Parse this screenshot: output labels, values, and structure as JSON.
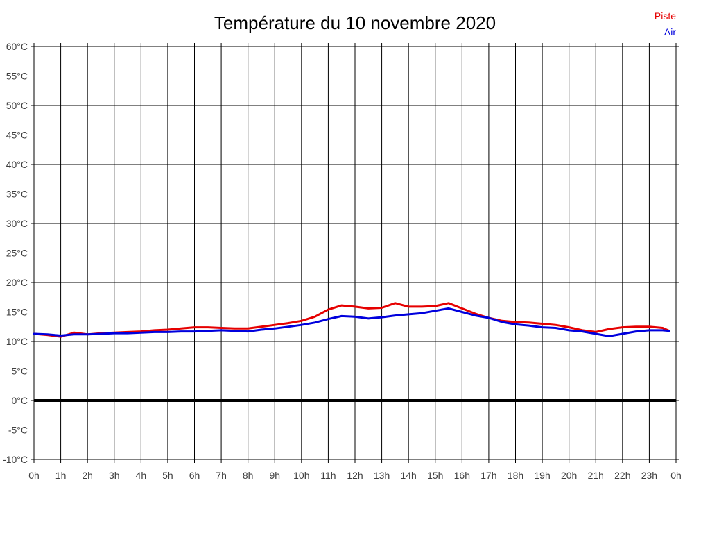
{
  "header": {
    "title": "Température du 10 novembre 2020"
  },
  "legend": {
    "items": [
      {
        "label": "Piste",
        "color": "#e60000"
      },
      {
        "label": "Air",
        "color": "#0000dd"
      }
    ]
  },
  "chart_data": {
    "type": "line",
    "title": "Température du 10 novembre 2020",
    "xlabel": "",
    "ylabel": "",
    "xlim": [
      0,
      24
    ],
    "ylim": [
      -10,
      60
    ],
    "y_tick_step": 5,
    "grid": true,
    "legend_position": "top-right",
    "colors": {
      "grid": "#000000",
      "axis": "#000000",
      "zero_line": "#000000",
      "tick_label": "#3f3f3f",
      "background": "#ffffff"
    },
    "zero_line_value": 0,
    "x_tick_labels": [
      "0h",
      "1h",
      "2h",
      "3h",
      "4h",
      "5h",
      "6h",
      "7h",
      "8h",
      "9h",
      "10h",
      "11h",
      "12h",
      "13h",
      "14h",
      "15h",
      "16h",
      "17h",
      "18h",
      "19h",
      "20h",
      "21h",
      "22h",
      "23h",
      "0h"
    ],
    "y_tick_labels": [
      "60°C",
      "55°C",
      "50°C",
      "45°C",
      "40°C",
      "35°C",
      "30°C",
      "25°C",
      "20°C",
      "15°C",
      "10°C",
      "5°C",
      "0°C",
      "-5°C",
      "-10°C"
    ],
    "x": [
      0,
      0.5,
      1,
      1.5,
      2,
      2.5,
      3,
      3.5,
      4,
      4.5,
      5,
      5.5,
      6,
      6.5,
      7,
      7.5,
      8,
      8.5,
      9,
      9.5,
      10,
      10.5,
      11,
      11.5,
      12,
      12.5,
      13,
      13.5,
      14,
      14.5,
      15,
      15.5,
      16,
      16.5,
      17,
      17.5,
      18,
      18.5,
      19,
      19.5,
      20,
      20.5,
      21,
      21.5,
      22,
      22.5,
      23,
      23.5,
      23.75
    ],
    "series": [
      {
        "name": "Piste",
        "color": "#e60000",
        "width": 3,
        "values": [
          11.3,
          11.1,
          10.8,
          11.5,
          11.2,
          11.4,
          11.5,
          11.6,
          11.7,
          11.9,
          12.0,
          12.2,
          12.4,
          12.4,
          12.3,
          12.2,
          12.2,
          12.5,
          12.8,
          13.1,
          13.5,
          14.2,
          15.4,
          16.1,
          15.9,
          15.6,
          15.7,
          16.5,
          15.9,
          15.9,
          16.0,
          16.5,
          15.6,
          14.7,
          14.0,
          13.5,
          13.3,
          13.2,
          13.0,
          12.8,
          12.4,
          11.9,
          11.6,
          12.1,
          12.4,
          12.5,
          12.5,
          12.3,
          11.8
        ]
      },
      {
        "name": "Air",
        "color": "#0000dd",
        "width": 3,
        "values": [
          11.3,
          11.2,
          11.0,
          11.2,
          11.2,
          11.3,
          11.4,
          11.4,
          11.5,
          11.6,
          11.6,
          11.7,
          11.7,
          11.8,
          11.9,
          11.8,
          11.7,
          12.0,
          12.2,
          12.5,
          12.8,
          13.2,
          13.8,
          14.3,
          14.2,
          13.9,
          14.1,
          14.4,
          14.6,
          14.8,
          15.2,
          15.6,
          15.0,
          14.4,
          14.0,
          13.3,
          12.9,
          12.7,
          12.4,
          12.3,
          11.9,
          11.7,
          11.3,
          10.9,
          11.3,
          11.7,
          11.9,
          11.9,
          11.8
        ]
      }
    ]
  }
}
